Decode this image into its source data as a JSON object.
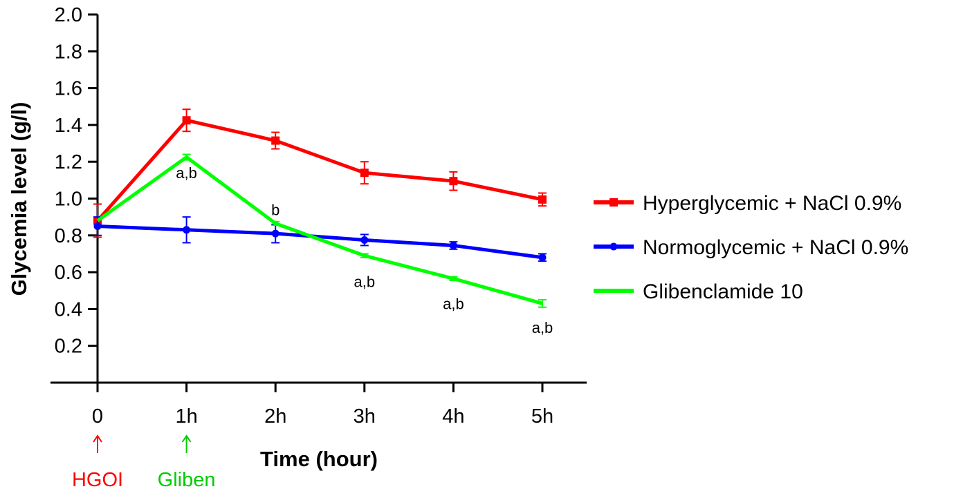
{
  "chart_data": {
    "type": "line",
    "xlabel": "Time (hour)",
    "ylabel": "Glycemia level (g/l)",
    "categories": [
      "0",
      "1h",
      "2h",
      "3h",
      "4h",
      "5h"
    ],
    "ylim": [
      0,
      2.0
    ],
    "yticks": [
      "0.2",
      "0.4",
      "0.6",
      "0.8",
      "1.0",
      "1.2",
      "1.4",
      "1.6",
      "1.8",
      "2.0"
    ],
    "grid": false,
    "legend_position": "right",
    "series": [
      {
        "name": "Hyperglycemic + NaCl 0.9%",
        "color": "#ff0000",
        "marker": "square",
        "values": [
          0.88,
          1.425,
          1.315,
          1.14,
          1.095,
          0.995
        ],
        "errors": [
          0.09,
          0.06,
          0.045,
          0.06,
          0.05,
          0.035
        ]
      },
      {
        "name": "Normoglycemic + NaCl 0.9%",
        "color": "#0000ff",
        "marker": "circle",
        "values": [
          0.85,
          0.83,
          0.81,
          0.775,
          0.745,
          0.68
        ],
        "errors": [
          0.05,
          0.07,
          0.05,
          0.03,
          0.02,
          0.02
        ]
      },
      {
        "name": "Glibenclamide 10",
        "color": "#00ff00",
        "marker": "none",
        "values": [
          0.88,
          1.225,
          0.865,
          0.69,
          0.565,
          0.43
        ],
        "errors": [
          0.0,
          0.015,
          0.01,
          0.01,
          0.01,
          0.02
        ]
      }
    ],
    "annotations": [
      {
        "text": "a,b",
        "x": "1h",
        "y": 1.11
      },
      {
        "text": "b",
        "x": "2h",
        "y": 0.91
      },
      {
        "text": "a,b",
        "x": "3h",
        "y": 0.52
      },
      {
        "text": "a,b",
        "x": "4h",
        "y": 0.4
      },
      {
        "text": "a,b",
        "x": "5h",
        "y": 0.27
      }
    ],
    "markers": [
      {
        "text": "HGOI",
        "x": "0",
        "color": "#ff0000"
      },
      {
        "text": "Gliben",
        "x": "1h",
        "color": "#00cc00"
      }
    ]
  }
}
